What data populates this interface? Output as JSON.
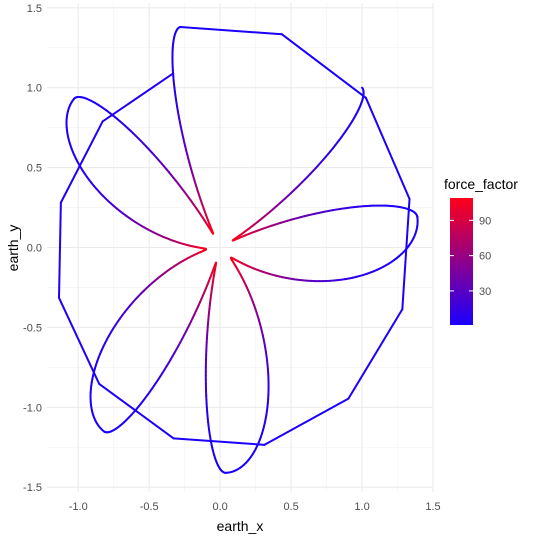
{
  "chart_data": {
    "type": "scatter",
    "description_geom": "path",
    "xlabel": "earth_x",
    "ylabel": "earth_y",
    "xlim": [
      -1.22,
      1.5
    ],
    "ylim": [
      -1.53,
      1.53
    ],
    "x_ticks": [
      -1.0,
      -0.5,
      0.0,
      0.5,
      1.0,
      1.5
    ],
    "x_tick_labels": [
      "-1.0",
      "-0.5",
      "0.0",
      "0.5",
      "1.0",
      "1.5"
    ],
    "y_ticks": [
      -1.5,
      -1.0,
      -0.5,
      0.0,
      0.5,
      1.0,
      1.5
    ],
    "y_tick_labels": [
      "-1.5",
      "-1.0",
      "-0.5",
      "0.0",
      "0.5",
      "1.0",
      "1.5"
    ],
    "grid": true,
    "legend": {
      "title": "force_factor",
      "position": "right",
      "range": [
        1,
        109
      ],
      "breaks": [
        30,
        60,
        90
      ],
      "break_labels": [
        "30",
        "60",
        "90"
      ],
      "low_color": "#1a00ff",
      "high_color": "#ff0019"
    },
    "curve": {
      "form": "rosette",
      "path_start": [
        -0.33,
        1.09
      ],
      "path_end": [
        1.0,
        1.0
      ],
      "petal_count": 5,
      "petal_tips": [
        {
          "x": -0.28,
          "y": 1.38
        },
        {
          "x": -1.03,
          "y": 0.93
        },
        {
          "x": -0.82,
          "y": -1.15
        },
        {
          "x": 0.04,
          "y": -1.41
        },
        {
          "x": 1.39,
          "y": 0.19
        }
      ],
      "min_radius": 0.1
    }
  }
}
